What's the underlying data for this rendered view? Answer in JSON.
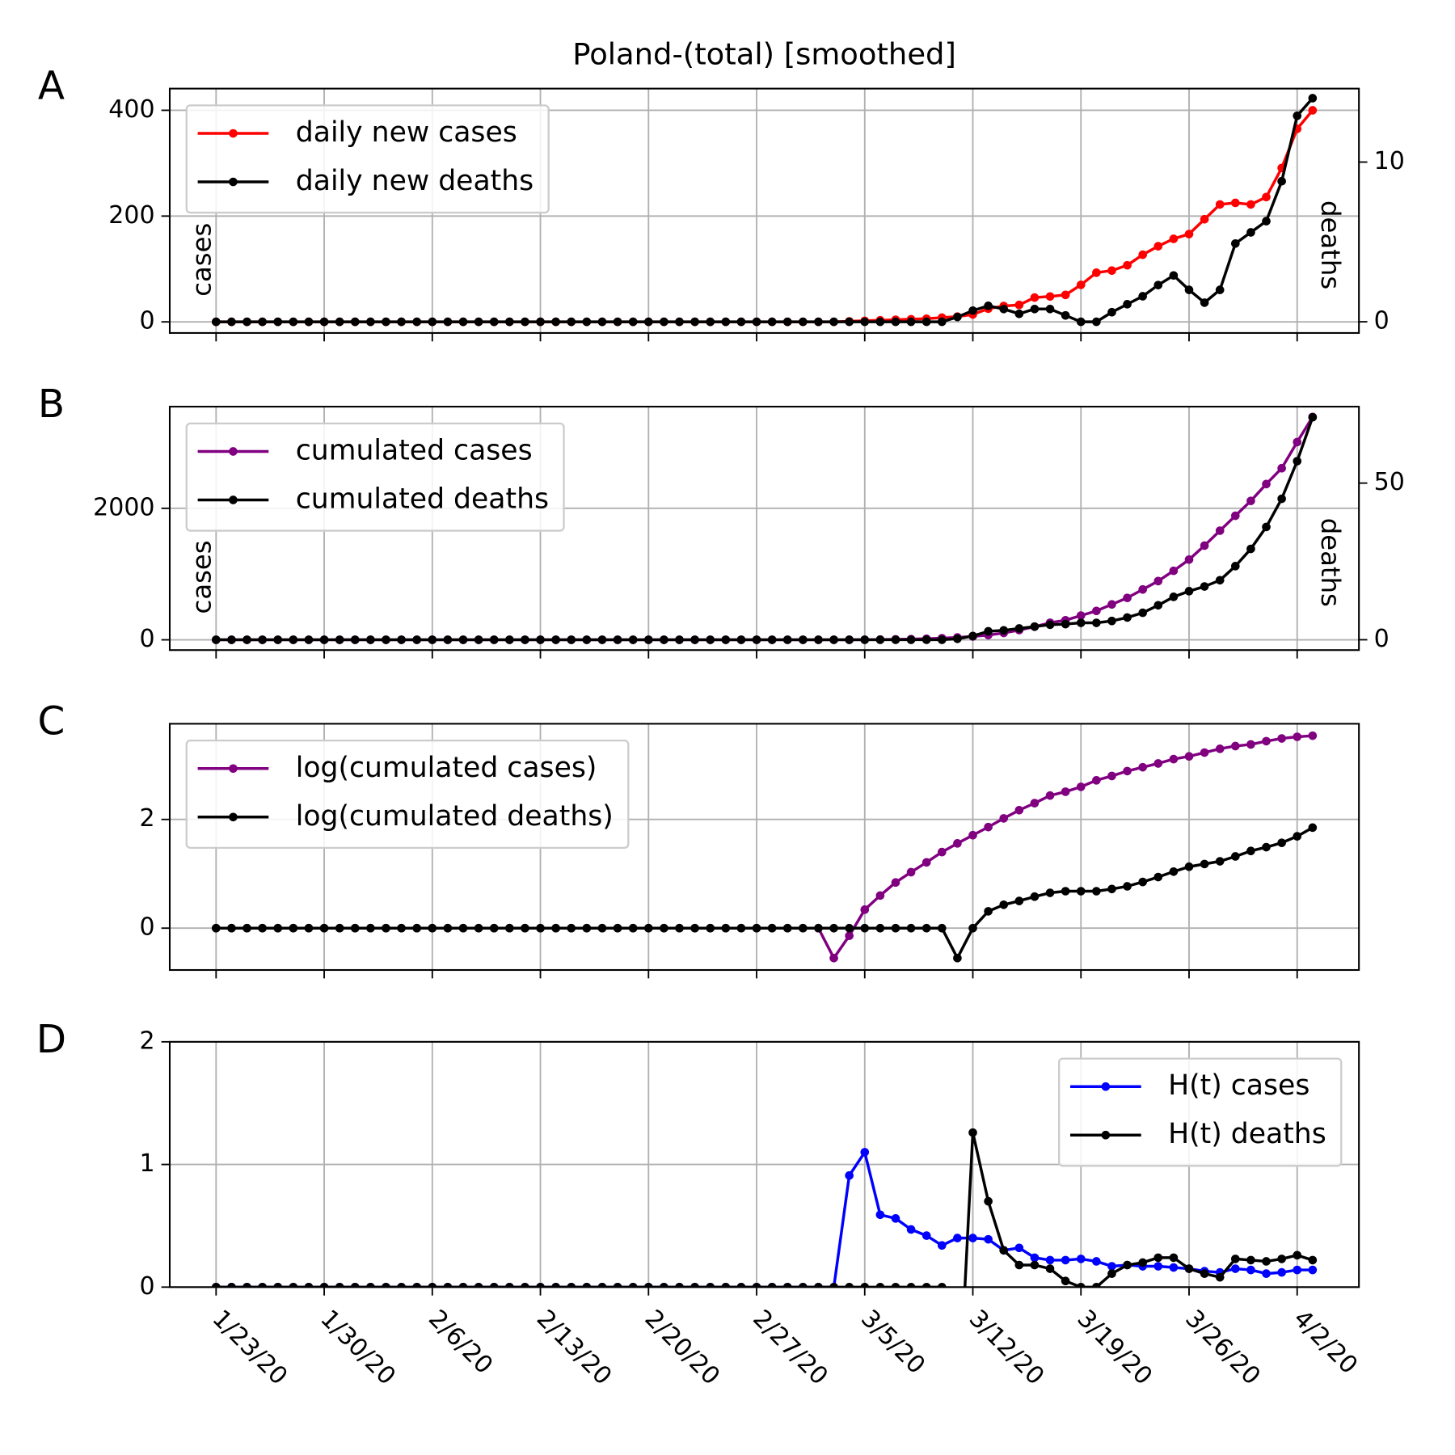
{
  "chart_data": [
    {
      "type": "line",
      "title": "Poland-(total) [smoothed]",
      "label": "A",
      "ylabel": "cases",
      "y2label": "deaths",
      "legend": "upper left",
      "grid": true,
      "x": [
        "1/23/20",
        "1/24/20",
        "1/25/20",
        "1/26/20",
        "1/27/20",
        "1/28/20",
        "1/29/20",
        "1/30/20",
        "1/31/20",
        "2/1/20",
        "2/2/20",
        "2/3/20",
        "2/4/20",
        "2/5/20",
        "2/6/20",
        "2/7/20",
        "2/8/20",
        "2/9/20",
        "2/10/20",
        "2/11/20",
        "2/12/20",
        "2/13/20",
        "2/14/20",
        "2/15/20",
        "2/16/20",
        "2/17/20",
        "2/18/20",
        "2/19/20",
        "2/20/20",
        "2/21/20",
        "2/22/20",
        "2/23/20",
        "2/24/20",
        "2/25/20",
        "2/26/20",
        "2/27/20",
        "2/28/20",
        "2/29/20",
        "3/1/20",
        "3/2/20",
        "3/3/20",
        "3/4/20",
        "3/5/20",
        "3/6/20",
        "3/7/20",
        "3/8/20",
        "3/9/20",
        "3/10/20",
        "3/11/20",
        "3/12/20",
        "3/13/20",
        "3/14/20",
        "3/15/20",
        "3/16/20",
        "3/17/20",
        "3/18/20",
        "3/19/20",
        "3/20/20",
        "3/21/20",
        "3/22/20",
        "3/23/20",
        "3/24/20",
        "3/25/20",
        "3/26/20",
        "3/27/20",
        "3/28/20",
        "3/29/20",
        "3/30/20",
        "3/31/20",
        "4/1/20",
        "4/2/20",
        "4/3/20"
      ],
      "xlim": [
        "1/20/20",
        "4/6/20"
      ],
      "xticks": [
        "1/23/20",
        "1/30/20",
        "2/6/20",
        "2/13/20",
        "2/20/20",
        "2/27/20",
        "3/5/20",
        "3/12/20",
        "3/19/20",
        "3/26/20",
        "4/2/20"
      ],
      "ylim": [
        -21,
        441
      ],
      "yticks": [
        0,
        200,
        400
      ],
      "y2lim": [
        -0.7,
        14.6
      ],
      "y2ticks": [
        0,
        10
      ],
      "series": [
        {
          "name": "daily new cases",
          "color": "#ff0000",
          "values": [
            0,
            0,
            0,
            0,
            0,
            0,
            0,
            0,
            0,
            0,
            0,
            0,
            0,
            0,
            0,
            0,
            0,
            0,
            0,
            0,
            0,
            0,
            0,
            0,
            0,
            0,
            0,
            0,
            0,
            0,
            0,
            0,
            0,
            0,
            0,
            0,
            0,
            0,
            0,
            0,
            0,
            1,
            2,
            3,
            4,
            5,
            6,
            8,
            10,
            14,
            25,
            30,
            32,
            46,
            48,
            51,
            70,
            93,
            97,
            107,
            127,
            143,
            157,
            166,
            194,
            222,
            225,
            222,
            236,
            291,
            365,
            400
          ]
        },
        {
          "name": "daily new deaths",
          "color": "#000000",
          "axis": "y2",
          "values": [
            0,
            0,
            0,
            0,
            0,
            0,
            0,
            0,
            0,
            0,
            0,
            0,
            0,
            0,
            0,
            0,
            0,
            0,
            0,
            0,
            0,
            0,
            0,
            0,
            0,
            0,
            0,
            0,
            0,
            0,
            0,
            0,
            0,
            0,
            0,
            0,
            0,
            0,
            0,
            0,
            0,
            0,
            0,
            0,
            0,
            0,
            0,
            0,
            0.3,
            0.7,
            1.0,
            0.8,
            0.5,
            0.8,
            0.8,
            0.4,
            0,
            0,
            0.6,
            1.1,
            1.6,
            2.3,
            2.9,
            2.0,
            1.2,
            2.0,
            4.9,
            5.6,
            6.3,
            8.8,
            12.9,
            14.0
          ]
        }
      ]
    },
    {
      "type": "line",
      "label": "B",
      "ylabel": "cases",
      "y2label": "deaths",
      "legend": "upper left",
      "grid": true,
      "x": [
        "1/23/20",
        "1/24/20",
        "1/25/20",
        "1/26/20",
        "1/27/20",
        "1/28/20",
        "1/29/20",
        "1/30/20",
        "1/31/20",
        "2/1/20",
        "2/2/20",
        "2/3/20",
        "2/4/20",
        "2/5/20",
        "2/6/20",
        "2/7/20",
        "2/8/20",
        "2/9/20",
        "2/10/20",
        "2/11/20",
        "2/12/20",
        "2/13/20",
        "2/14/20",
        "2/15/20",
        "2/16/20",
        "2/17/20",
        "2/18/20",
        "2/19/20",
        "2/20/20",
        "2/21/20",
        "2/22/20",
        "2/23/20",
        "2/24/20",
        "2/25/20",
        "2/26/20",
        "2/27/20",
        "2/28/20",
        "2/29/20",
        "3/1/20",
        "3/2/20",
        "3/3/20",
        "3/4/20",
        "3/5/20",
        "3/6/20",
        "3/7/20",
        "3/8/20",
        "3/9/20",
        "3/10/20",
        "3/11/20",
        "3/12/20",
        "3/13/20",
        "3/14/20",
        "3/15/20",
        "3/16/20",
        "3/17/20",
        "3/18/20",
        "3/19/20",
        "3/20/20",
        "3/21/20",
        "3/22/20",
        "3/23/20",
        "3/24/20",
        "3/25/20",
        "3/26/20",
        "3/27/20",
        "3/28/20",
        "3/29/20",
        "3/30/20",
        "3/31/20",
        "4/1/20",
        "4/2/20",
        "4/3/20"
      ],
      "xlim": [
        "1/20/20",
        "4/6/20"
      ],
      "xticks": [
        "1/23/20",
        "1/30/20",
        "2/6/20",
        "2/13/20",
        "2/20/20",
        "2/27/20",
        "3/5/20",
        "3/12/20",
        "3/19/20",
        "3/26/20",
        "4/2/20"
      ],
      "ylim": [
        -156,
        3546
      ],
      "yticks": [
        0,
        2000
      ],
      "y2lim": [
        -3.3,
        74.4
      ],
      "y2ticks": [
        0,
        50
      ],
      "series": [
        {
          "name": "cumulated cases",
          "color": "#800080",
          "values": [
            0,
            0,
            0,
            0,
            0,
            0,
            0,
            0,
            0,
            0,
            0,
            0,
            0,
            0,
            0,
            0,
            0,
            0,
            0,
            0,
            0,
            0,
            0,
            0,
            0,
            0,
            0,
            0,
            0,
            0,
            0,
            0,
            0,
            0,
            0,
            0,
            0,
            0,
            0,
            0,
            0.3,
            1,
            2,
            4,
            7,
            11,
            16,
            25,
            36,
            51,
            72,
            105,
            148,
            200,
            260,
            298,
            369,
            440,
            539,
            638,
            766,
            894,
            1050,
            1220,
            1433,
            1660,
            1887,
            2113,
            2369,
            2610,
            3007,
            3390
          ]
        },
        {
          "name": "cumulated deaths",
          "color": "#000000",
          "axis": "y2",
          "values": [
            0,
            0,
            0,
            0,
            0,
            0,
            0,
            0,
            0,
            0,
            0,
            0,
            0,
            0,
            0,
            0,
            0,
            0,
            0,
            0,
            0,
            0,
            0,
            0,
            0,
            0,
            0,
            0,
            0,
            0,
            0,
            0,
            0,
            0,
            0,
            0,
            0,
            0,
            0,
            0,
            0,
            0,
            0,
            0,
            0,
            0,
            0,
            0,
            0.3,
            1.2,
            2.7,
            3,
            3.6,
            4.2,
            4.8,
            5,
            5.4,
            5.4,
            6,
            7.1,
            8.6,
            11,
            13.7,
            15.5,
            17,
            19,
            23.5,
            29,
            36,
            45,
            57,
            71
          ]
        }
      ]
    },
    {
      "type": "line",
      "label": "C",
      "legend": "upper left",
      "grid": true,
      "x": [
        "1/23/20",
        "1/24/20",
        "1/25/20",
        "1/26/20",
        "1/27/20",
        "1/28/20",
        "1/29/20",
        "1/30/20",
        "1/31/20",
        "2/1/20",
        "2/2/20",
        "2/3/20",
        "2/4/20",
        "2/5/20",
        "2/6/20",
        "2/7/20",
        "2/8/20",
        "2/9/20",
        "2/10/20",
        "2/11/20",
        "2/12/20",
        "2/13/20",
        "2/14/20",
        "2/15/20",
        "2/16/20",
        "2/17/20",
        "2/18/20",
        "2/19/20",
        "2/20/20",
        "2/21/20",
        "2/22/20",
        "2/23/20",
        "2/24/20",
        "2/25/20",
        "2/26/20",
        "2/27/20",
        "2/28/20",
        "2/29/20",
        "3/1/20",
        "3/2/20",
        "3/3/20",
        "3/4/20",
        "3/5/20",
        "3/6/20",
        "3/7/20",
        "3/8/20",
        "3/9/20",
        "3/10/20",
        "3/11/20",
        "3/12/20",
        "3/13/20",
        "3/14/20",
        "3/15/20",
        "3/16/20",
        "3/17/20",
        "3/18/20",
        "3/19/20",
        "3/20/20",
        "3/21/20",
        "3/22/20",
        "3/23/20",
        "3/24/20",
        "3/25/20",
        "3/26/20",
        "3/27/20",
        "3/28/20",
        "3/29/20",
        "3/30/20",
        "3/31/20",
        "4/1/20",
        "4/2/20",
        "4/3/20"
      ],
      "xlim": [
        "1/20/20",
        "4/6/20"
      ],
      "xticks": [
        "1/23/20",
        "1/30/20",
        "2/6/20",
        "2/13/20",
        "2/20/20",
        "2/27/20",
        "3/5/20",
        "3/12/20",
        "3/19/20",
        "3/26/20",
        "4/2/20"
      ],
      "ylim": [
        -0.77,
        3.76
      ],
      "yticks": [
        0,
        2
      ],
      "series": [
        {
          "name": "log(cumulated cases)",
          "color": "#800080",
          "values": [
            0,
            0,
            0,
            0,
            0,
            0,
            0,
            0,
            0,
            0,
            0,
            0,
            0,
            0,
            0,
            0,
            0,
            0,
            0,
            0,
            0,
            0,
            0,
            0,
            0,
            0,
            0,
            0,
            0,
            0,
            0,
            0,
            0,
            0,
            0,
            0,
            0,
            0,
            0,
            0,
            -0.55,
            -0.14,
            0.34,
            0.6,
            0.84,
            1.03,
            1.21,
            1.4,
            1.56,
            1.71,
            1.86,
            2.02,
            2.17,
            2.3,
            2.44,
            2.51,
            2.6,
            2.72,
            2.8,
            2.89,
            2.96,
            3.03,
            3.11,
            3.16,
            3.23,
            3.3,
            3.35,
            3.38,
            3.44,
            3.49,
            3.52,
            3.54
          ]
        },
        {
          "name": "log(cumulated deaths)",
          "color": "#000000",
          "values": [
            0,
            0,
            0,
            0,
            0,
            0,
            0,
            0,
            0,
            0,
            0,
            0,
            0,
            0,
            0,
            0,
            0,
            0,
            0,
            0,
            0,
            0,
            0,
            0,
            0,
            0,
            0,
            0,
            0,
            0,
            0,
            0,
            0,
            0,
            0,
            0,
            0,
            0,
            0,
            0,
            0,
            0,
            0,
            0,
            0,
            0,
            0,
            0,
            -0.55,
            0,
            0.31,
            0.43,
            0.5,
            0.58,
            0.65,
            0.68,
            0.68,
            0.68,
            0.72,
            0.77,
            0.85,
            0.94,
            1.04,
            1.13,
            1.18,
            1.23,
            1.32,
            1.42,
            1.49,
            1.57,
            1.69,
            1.85
          ]
        }
      ]
    },
    {
      "type": "line",
      "label": "D",
      "legend": "upper right",
      "grid": true,
      "x": [
        "1/23/20",
        "1/24/20",
        "1/25/20",
        "1/26/20",
        "1/27/20",
        "1/28/20",
        "1/29/20",
        "1/30/20",
        "1/31/20",
        "2/1/20",
        "2/2/20",
        "2/3/20",
        "2/4/20",
        "2/5/20",
        "2/6/20",
        "2/7/20",
        "2/8/20",
        "2/9/20",
        "2/10/20",
        "2/11/20",
        "2/12/20",
        "2/13/20",
        "2/14/20",
        "2/15/20",
        "2/16/20",
        "2/17/20",
        "2/18/20",
        "2/19/20",
        "2/20/20",
        "2/21/20",
        "2/22/20",
        "2/23/20",
        "2/24/20",
        "2/25/20",
        "2/26/20",
        "2/27/20",
        "2/28/20",
        "2/29/20",
        "3/1/20",
        "3/2/20",
        "3/3/20",
        "3/4/20",
        "3/5/20",
        "3/6/20",
        "3/7/20",
        "3/8/20",
        "3/9/20",
        "3/10/20",
        "3/11/20",
        "3/12/20",
        "3/13/20",
        "3/14/20",
        "3/15/20",
        "3/16/20",
        "3/17/20",
        "3/18/20",
        "3/19/20",
        "3/20/20",
        "3/21/20",
        "3/22/20",
        "3/23/20",
        "3/24/20",
        "3/25/20",
        "3/26/20",
        "3/27/20",
        "3/28/20",
        "3/29/20",
        "3/30/20",
        "3/31/20",
        "4/1/20",
        "4/2/20",
        "4/3/20"
      ],
      "xlim": [
        "1/20/20",
        "4/6/20"
      ],
      "xticks": [
        "1/23/20",
        "1/30/20",
        "2/6/20",
        "2/13/20",
        "2/20/20",
        "2/27/20",
        "3/5/20",
        "3/12/20",
        "3/19/20",
        "3/26/20",
        "4/2/20"
      ],
      "ylim": [
        0,
        2
      ],
      "yticks": [
        0,
        1,
        2
      ],
      "series": [
        {
          "name": "H(t) cases",
          "color": "#0000ff",
          "values": [
            0,
            0,
            0,
            0,
            0,
            0,
            0,
            0,
            0,
            0,
            0,
            0,
            0,
            0,
            0,
            0,
            0,
            0,
            0,
            0,
            0,
            0,
            0,
            0,
            0,
            0,
            0,
            0,
            0,
            0,
            0,
            0,
            0,
            0,
            0,
            0,
            0,
            0,
            0,
            0,
            0,
            0.91,
            1.1,
            0.59,
            0.56,
            0.47,
            0.42,
            0.34,
            0.4,
            0.4,
            0.39,
            0.3,
            0.32,
            0.24,
            0.22,
            0.22,
            0.23,
            0.21,
            0.17,
            0.18,
            0.17,
            0.17,
            0.16,
            0.15,
            0.13,
            0.12,
            0.15,
            0.14,
            0.11,
            0.12,
            0.14,
            0.14
          ]
        },
        {
          "name": "H(t) deaths",
          "color": "#000000",
          "values": [
            0,
            0,
            0,
            0,
            0,
            0,
            0,
            0,
            0,
            0,
            0,
            0,
            0,
            0,
            0,
            0,
            0,
            0,
            0,
            0,
            0,
            0,
            0,
            0,
            0,
            0,
            0,
            0,
            0,
            0,
            0,
            0,
            0,
            0,
            0,
            0,
            0,
            0,
            0,
            0,
            0,
            0,
            0,
            0,
            0,
            0,
            0,
            0,
            -1.2,
            1.26,
            0.7,
            0.3,
            0.18,
            0.18,
            0.15,
            0.05,
            0,
            0,
            0.11,
            0.18,
            0.2,
            0.24,
            0.24,
            0.15,
            0.11,
            0.08,
            0.23,
            0.22,
            0.21,
            0.23,
            0.26,
            0.22
          ]
        }
      ]
    }
  ]
}
